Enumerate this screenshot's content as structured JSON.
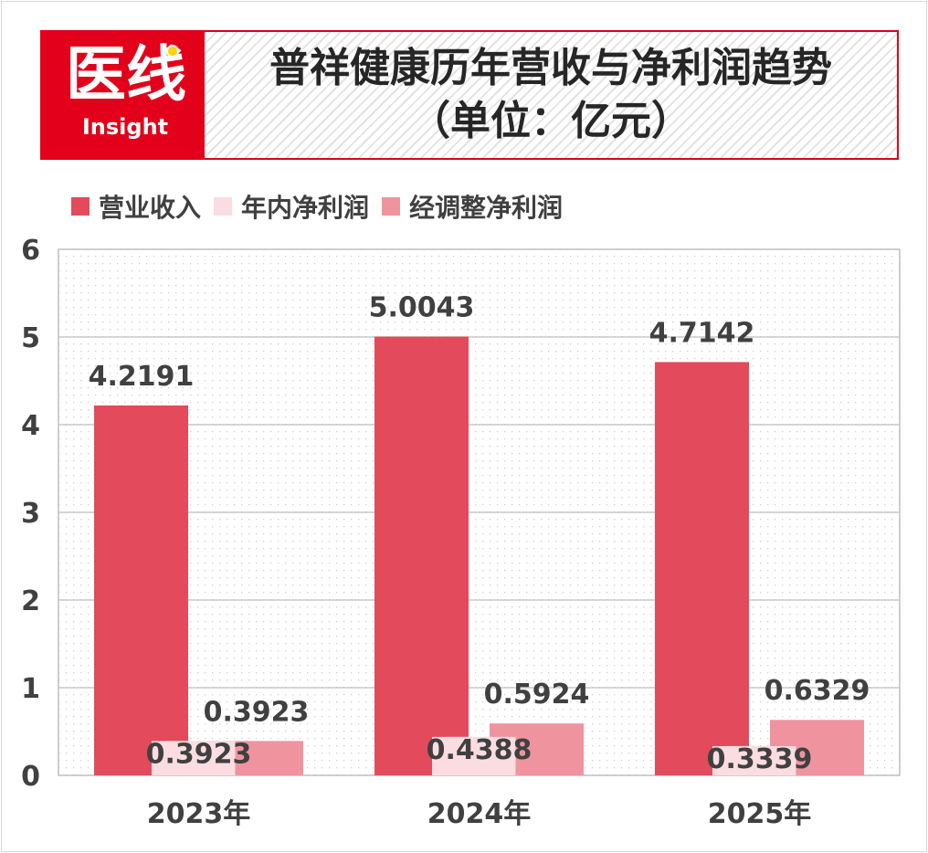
{
  "header": {
    "logo_text": "医线",
    "logo_subtext": "Insight",
    "title_line1": "普祥健康历年营收与净利润趋势",
    "title_line2": "（单位：亿元）"
  },
  "colors": {
    "revenue": "#e34a5c",
    "net_profit": "#fbdde1",
    "adjusted_profit": "#ef949f",
    "brand_red": "#e2001a",
    "text": "#404040"
  },
  "chart_data": {
    "type": "bar",
    "categories": [
      "2023年",
      "2024年",
      "2025年"
    ],
    "series": [
      {
        "name": "营业收入",
        "values": [
          4.2191,
          5.0043,
          4.7142
        ],
        "labels": [
          "4.2191",
          "5.0043",
          "4.7142"
        ]
      },
      {
        "name": "年内净利润",
        "values": [
          0.3923,
          0.4388,
          0.3339
        ],
        "labels": [
          "0.3923",
          "0.4388",
          "0.3339"
        ]
      },
      {
        "name": "经调整净利润",
        "values": [
          0.3923,
          0.5924,
          0.6329
        ],
        "labels": [
          "0.3923",
          "0.5924",
          "0.6329"
        ]
      }
    ],
    "yticks": [
      "0",
      "1",
      "2",
      "3",
      "4",
      "5",
      "6"
    ],
    "ylim": [
      0,
      6
    ],
    "grid": true,
    "legend_position": "top-left"
  }
}
